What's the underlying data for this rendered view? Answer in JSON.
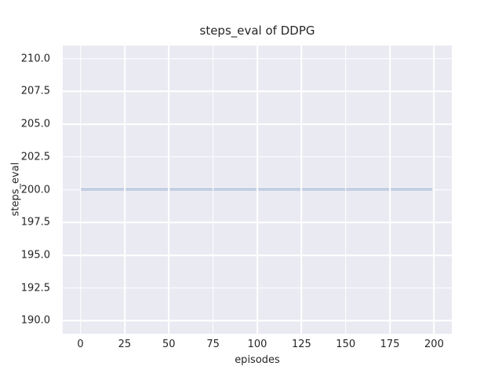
{
  "chart_data": {
    "type": "line",
    "title": "steps_eval of DDPG",
    "xlabel": "episodes",
    "ylabel": "steps_eval",
    "xlim": [
      -10,
      210
    ],
    "ylim": [
      189,
      211
    ],
    "x_ticks": [
      0,
      25,
      50,
      75,
      100,
      125,
      150,
      175,
      200
    ],
    "x_tick_labels": [
      "0",
      "25",
      "50",
      "75",
      "100",
      "125",
      "150",
      "175",
      "200"
    ],
    "y_ticks": [
      190.0,
      192.5,
      195.0,
      197.5,
      200.0,
      202.5,
      205.0,
      207.5,
      210.0
    ],
    "y_tick_labels": [
      "190.0",
      "192.5",
      "195.0",
      "197.5",
      "200.0",
      "202.5",
      "205.0",
      "207.5",
      "210.0"
    ],
    "grid": true,
    "legend": null,
    "series": [
      {
        "name": "DDPG",
        "x": [
          0,
          199
        ],
        "values": [
          200,
          200
        ],
        "color": "#4c72b0",
        "line_width": 2
      }
    ],
    "colors": {
      "figure_background": "#ffffff",
      "plot_background": "#eaeaf2",
      "gridline": "#ffffff",
      "text": "#262626"
    }
  }
}
